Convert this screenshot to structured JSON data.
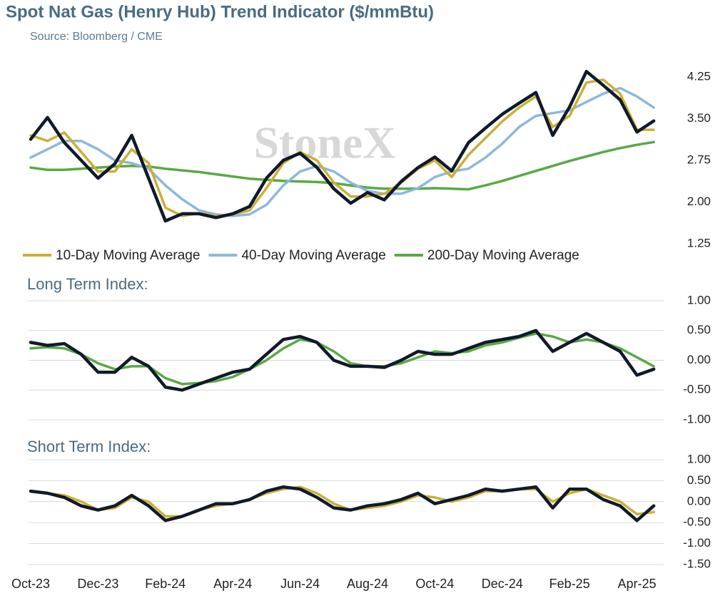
{
  "title": "Spot Nat Gas (Henry Hub) Trend Indicator ($/mmBtu)",
  "subtitle": "Source: Bloomberg / CME",
  "watermark": "StoneX",
  "chart_data": [
    {
      "type": "line",
      "ylim": [
        1.25,
        4.5
      ],
      "yticks": [
        {
          "value": 1.25,
          "label": "1.25"
        },
        {
          "value": 2,
          "label": "2.00"
        },
        {
          "value": 2.75,
          "label": "2.75"
        },
        {
          "value": 3.5,
          "label": "3.50"
        },
        {
          "value": 4.25,
          "label": "4.25"
        }
      ],
      "grid": false,
      "series": [
        {
          "color": "#111a2b",
          "values": [
            3.13,
            3.52,
            3.07,
            2.75,
            2.43,
            2.69,
            3.2,
            2.43,
            1.66,
            1.79,
            1.79,
            1.72,
            1.79,
            1.92,
            2.43,
            2.75,
            2.88,
            2.62,
            2.24,
            1.98,
            2.17,
            2.04,
            2.37,
            2.62,
            2.81,
            2.56,
            3.07,
            3.33,
            3.58,
            3.78,
            3.97,
            3.2,
            3.71,
            4.35,
            4.1,
            3.84,
            3.26,
            3.46
          ]
        },
        {
          "name": "10-Day Moving Average",
          "color": "#c9b037",
          "values": [
            3.2,
            3.1,
            3.25,
            2.9,
            2.55,
            2.55,
            2.95,
            2.7,
            1.9,
            1.75,
            1.8,
            1.75,
            1.78,
            1.85,
            2.25,
            2.7,
            2.9,
            2.75,
            2.35,
            2.1,
            2.1,
            2.15,
            2.35,
            2.6,
            2.75,
            2.45,
            2.85,
            3.15,
            3.45,
            3.7,
            3.9,
            3.35,
            3.55,
            4.15,
            4.2,
            3.95,
            3.3,
            3.3
          ]
        },
        {
          "name": "40-Day Moving Average",
          "color": "#8fb7dc",
          "values": [
            2.8,
            2.95,
            3.1,
            3.1,
            2.95,
            2.75,
            2.7,
            2.6,
            2.3,
            2.05,
            1.85,
            1.78,
            1.75,
            1.78,
            1.95,
            2.3,
            2.55,
            2.65,
            2.55,
            2.35,
            2.2,
            2.15,
            2.15,
            2.25,
            2.45,
            2.55,
            2.6,
            2.8,
            3.05,
            3.35,
            3.55,
            3.6,
            3.65,
            3.8,
            3.95,
            4.05,
            3.9,
            3.7
          ]
        },
        {
          "name": "200-Day Moving Average",
          "color": "#5aa845",
          "values": [
            2.62,
            2.58,
            2.58,
            2.6,
            2.62,
            2.64,
            2.65,
            2.64,
            2.6,
            2.57,
            2.54,
            2.5,
            2.46,
            2.42,
            2.4,
            2.38,
            2.37,
            2.36,
            2.34,
            2.3,
            2.26,
            2.24,
            2.24,
            2.24,
            2.25,
            2.24,
            2.23,
            2.3,
            2.38,
            2.47,
            2.56,
            2.65,
            2.74,
            2.82,
            2.9,
            2.97,
            3.03,
            3.08
          ]
        }
      ]
    },
    {
      "type": "line",
      "title": "Long Term Index:",
      "ylim": [
        -1,
        1
      ],
      "yticks": [
        {
          "value": -1,
          "label": "-1.00"
        },
        {
          "value": -0.5,
          "label": "-0.50"
        },
        {
          "value": 0,
          "label": "0.00"
        },
        {
          "value": 0.5,
          "label": "0.50"
        },
        {
          "value": 1,
          "label": "1.00"
        }
      ],
      "grid": true,
      "series": [
        {
          "color": "#111a2b",
          "values": [
            0.3,
            0.25,
            0.28,
            0.1,
            -0.2,
            -0.2,
            0.05,
            -0.1,
            -0.45,
            -0.5,
            -0.4,
            -0.3,
            -0.2,
            -0.15,
            0.1,
            0.35,
            0.4,
            0.3,
            0,
            -0.1,
            -0.1,
            -0.12,
            0,
            0.15,
            0.1,
            0.1,
            0.2,
            0.3,
            0.35,
            0.4,
            0.5,
            0.15,
            0.3,
            0.45,
            0.3,
            0.15,
            -0.25,
            -0.15
          ]
        },
        {
          "color": "#5aa845",
          "values": [
            0.2,
            0.22,
            0.2,
            0.1,
            -0.05,
            -0.15,
            -0.1,
            -0.1,
            -0.3,
            -0.4,
            -0.38,
            -0.35,
            -0.28,
            -0.15,
            0,
            0.2,
            0.35,
            0.3,
            0.15,
            -0.05,
            -0.1,
            -0.1,
            -0.05,
            0.05,
            0.15,
            0.12,
            0.15,
            0.25,
            0.3,
            0.38,
            0.45,
            0.4,
            0.3,
            0.35,
            0.3,
            0.2,
            0.05,
            -0.1
          ]
        }
      ]
    },
    {
      "type": "line",
      "title": "Short Term Index:",
      "ylim": [
        -1.5,
        1
      ],
      "yticks": [
        {
          "value": -1.5,
          "label": "-1.50"
        },
        {
          "value": -1,
          "label": "-1.00"
        },
        {
          "value": -0.5,
          "label": "-0.50"
        },
        {
          "value": 0,
          "label": "0.00"
        },
        {
          "value": 0.5,
          "label": "0.50"
        },
        {
          "value": 1,
          "label": "1.00"
        }
      ],
      "grid": true,
      "categories": [
        "Oct-23",
        null,
        null,
        null,
        "Dec-23",
        null,
        null,
        null,
        "Feb-24",
        null,
        null,
        null,
        "Apr-24",
        null,
        null,
        null,
        "Jun-24",
        null,
        null,
        null,
        "Aug-24",
        null,
        null,
        null,
        "Oct-24",
        null,
        null,
        null,
        "Dec-24",
        null,
        null,
        null,
        "Feb-25",
        null,
        null,
        null,
        "Apr-25",
        null
      ],
      "series": [
        {
          "color": "#111a2b",
          "values": [
            0.25,
            0.2,
            0.1,
            -0.1,
            -0.2,
            -0.1,
            0.15,
            -0.1,
            -0.45,
            -0.35,
            -0.2,
            -0.05,
            -0.05,
            0.05,
            0.25,
            0.35,
            0.3,
            0.1,
            -0.15,
            -0.2,
            -0.1,
            -0.05,
            0.05,
            0.2,
            -0.05,
            0.05,
            0.15,
            0.3,
            0.25,
            0.3,
            0.35,
            -0.15,
            0.3,
            0.3,
            0.05,
            -0.1,
            -0.45,
            -0.1
          ]
        },
        {
          "color": "#c9b037",
          "values": [
            0.25,
            0.2,
            0.15,
            0,
            -0.2,
            -0.15,
            0.1,
            0,
            -0.35,
            -0.35,
            -0.2,
            -0.1,
            -0.05,
            0.05,
            0.2,
            0.3,
            0.35,
            0.2,
            -0.05,
            -0.2,
            -0.15,
            -0.1,
            0,
            0.15,
            0.1,
            0,
            0.1,
            0.25,
            0.25,
            0.3,
            0.3,
            0,
            0.2,
            0.3,
            0.15,
            0,
            -0.3,
            -0.25
          ]
        }
      ]
    }
  ]
}
